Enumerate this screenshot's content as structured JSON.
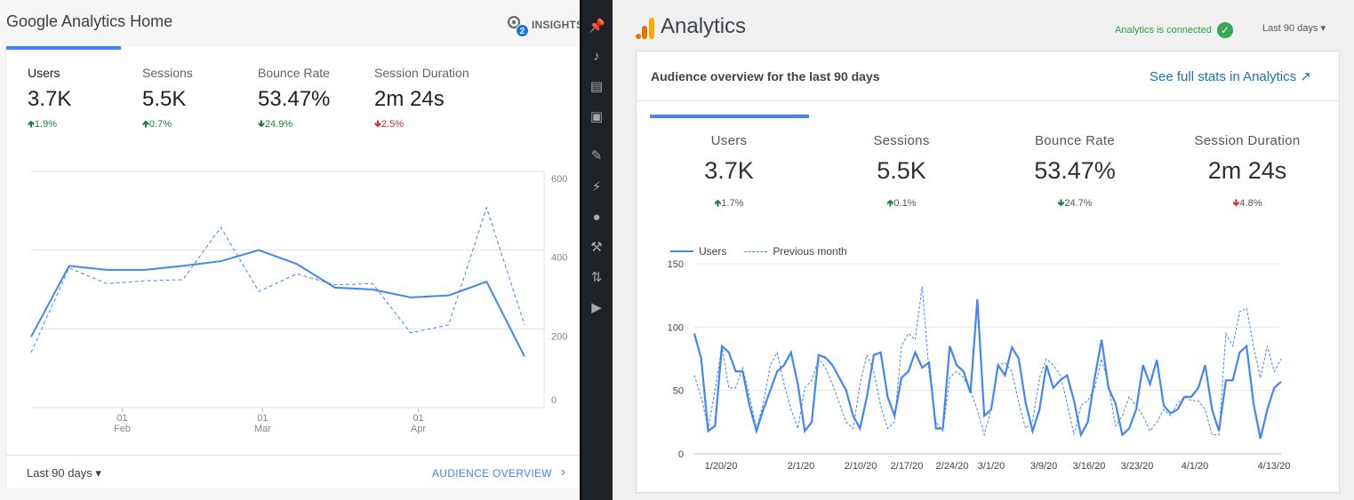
{
  "left": {
    "title": "Google Analytics Home",
    "insights": {
      "label": "INSIGHTS",
      "badge": "2"
    },
    "metrics": [
      {
        "label": "Users",
        "value": "3.7K",
        "change": "1.9%",
        "direction": "up"
      },
      {
        "label": "Sessions",
        "value": "5.5K",
        "change": "0.7%",
        "direction": "up"
      },
      {
        "label": "Bounce Rate",
        "value": "53.47%",
        "change": "24.9%",
        "direction": "down"
      },
      {
        "label": "Session Duration",
        "value": "2m 24s",
        "change": "2.5%",
        "direction": "down"
      }
    ],
    "footer": {
      "period": "Last 90 days",
      "link": "AUDIENCE OVERVIEW"
    },
    "chart_data": {
      "type": "line",
      "ylim": [
        0,
        600
      ],
      "yticks": [
        "600",
        "400",
        "200",
        "0"
      ],
      "xticks": [
        {
          "day": "01",
          "month": "Feb"
        },
        {
          "day": "01",
          "month": "Mar"
        },
        {
          "day": "01",
          "month": "Apr"
        }
      ],
      "series": [
        {
          "values": [
            180,
            360,
            350,
            350,
            360,
            372,
            400,
            365,
            305,
            300,
            280,
            285,
            320,
            130
          ],
          "style": "solid"
        },
        {
          "values": [
            140,
            355,
            315,
            322,
            325,
            458,
            295,
            340,
            312,
            315,
            190,
            210,
            508,
            210
          ],
          "style": "dashed"
        }
      ]
    }
  },
  "sidebar": {
    "icons": [
      "pin-icon",
      "media-icon",
      "pages-icon",
      "comments-icon",
      "appearance-icon",
      "plugins-icon",
      "users-icon",
      "tools-icon",
      "settings-icon",
      "play-icon"
    ]
  },
  "right": {
    "brand": "Analytics",
    "connected": "Analytics is connected",
    "range": "Last 90 days",
    "card_title": "Audience overview for the last 90 days",
    "full_link": "See full stats in Analytics",
    "metrics": [
      {
        "label": "Users",
        "value": "3.7K",
        "change": "1.7%",
        "direction": "up"
      },
      {
        "label": "Sessions",
        "value": "5.5K",
        "change": "0.1%",
        "direction": "up"
      },
      {
        "label": "Bounce Rate",
        "value": "53.47%",
        "change": "24.7%",
        "direction": "down"
      },
      {
        "label": "Session Duration",
        "value": "2m 24s",
        "change": "4.8%",
        "direction": "down"
      }
    ],
    "legend": {
      "series1": "Users",
      "series2": "Previous month"
    },
    "chart_data": {
      "type": "line",
      "ylim": [
        0,
        150
      ],
      "yticks": [
        "150",
        "100",
        "50",
        "0"
      ],
      "xticks": [
        "1/20/20",
        "2/1/20",
        "2/10/20",
        "2/17/20",
        "2/24/20",
        "3/1/20",
        "3/9/20",
        "3/16/20",
        "3/23/20",
        "4/1/20",
        "4/13/20"
      ],
      "series": [
        {
          "name": "Users",
          "values": [
            95,
            75,
            18,
            22,
            85,
            80,
            65,
            65,
            38,
            18,
            35,
            50,
            65,
            70,
            80,
            55,
            18,
            25,
            78,
            76,
            70,
            60,
            50,
            30,
            20,
            45,
            78,
            80,
            45,
            30,
            60,
            65,
            80,
            68,
            72,
            20,
            20,
            85,
            70,
            65,
            48,
            122,
            30,
            35,
            70,
            62,
            84,
            75,
            40,
            18,
            35,
            70,
            52,
            58,
            62,
            42,
            15,
            25,
            60,
            90,
            52,
            40,
            15,
            20,
            35,
            70,
            55,
            74,
            38,
            32,
            35,
            45,
            45,
            52,
            70,
            35,
            18,
            58,
            58,
            80,
            85,
            40,
            12,
            35,
            52,
            57
          ]
        },
        {
          "name": "Previous month",
          "values": [
            62,
            45,
            20,
            50,
            85,
            52,
            52,
            68,
            45,
            20,
            40,
            70,
            80,
            55,
            35,
            20,
            52,
            58,
            75,
            68,
            55,
            40,
            25,
            20,
            55,
            78,
            65,
            38,
            20,
            25,
            85,
            95,
            90,
            132,
            65,
            25,
            18,
            60,
            65,
            60,
            50,
            35,
            15,
            35,
            70,
            72,
            65,
            40,
            20,
            25,
            60,
            75,
            70,
            62,
            40,
            15,
            38,
            42,
            52,
            75,
            55,
            22,
            30,
            45,
            38,
            30,
            18,
            25,
            35,
            30,
            40,
            45,
            42,
            42,
            35,
            15,
            15,
            95,
            85,
            112,
            115,
            85,
            60,
            85,
            65,
            75
          ]
        }
      ]
    }
  }
}
